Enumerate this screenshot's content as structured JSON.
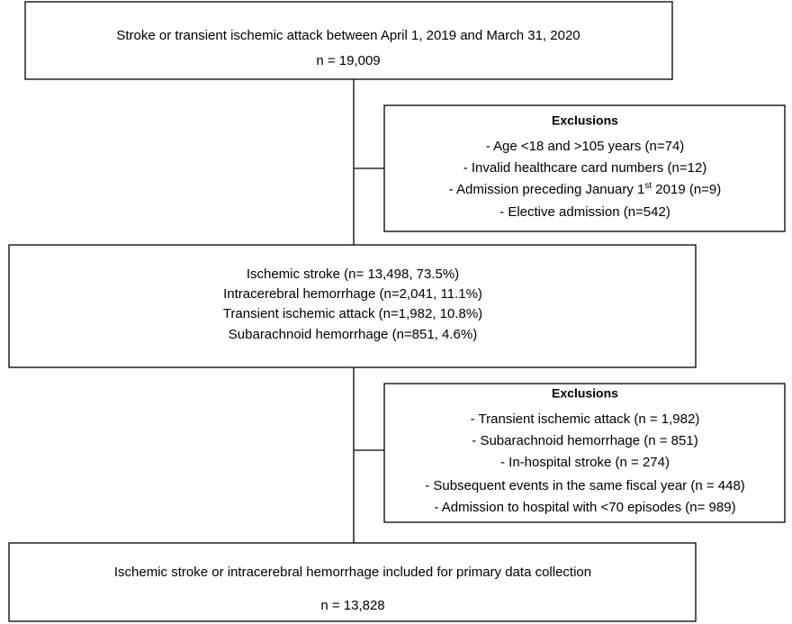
{
  "boxes": [
    {
      "lines": [
        "Stroke or transient ischemic attack between April 1, 2019 and March 31, 2020",
        "n = 19,009"
      ]
    },
    {
      "lines": [
        "Ischemic stroke (n= 13,498, 73.5%)",
        "Intracerebral hemorrhage (n=2,041, 11.1%)",
        "Transient ischemic attack (n=1,982, 10.8%)",
        "Subarachnoid hemorrhage (n=851, 4.6%)"
      ]
    },
    {
      "lines": [
        "Ischemic stroke or intracerebral hemorrhage included for primary data collection",
        "n = 13,828"
      ]
    }
  ],
  "exclusions": [
    {
      "title": "Exclusions",
      "items": [
        "- Age <18 and >105 years (n=74)",
        "- Invalid healthcare card numbers (n=12)",
        {
          "text": "- Admission preceding January 1",
          "sup": "st",
          "after": " 2019 (n=9)"
        },
        "- Elective admission (n=542)"
      ]
    },
    {
      "title": "Exclusions",
      "items": [
        "- Transient ischemic attack (n = 1,982)",
        "- Subarachnoid hemorrhage (n = 851)",
        "- In-hospital stroke (n = 274)",
        "- Subsequent events in the same fiscal year (n = 448)",
        "- Admission to hospital with <70 episodes (n= 989)"
      ]
    }
  ]
}
